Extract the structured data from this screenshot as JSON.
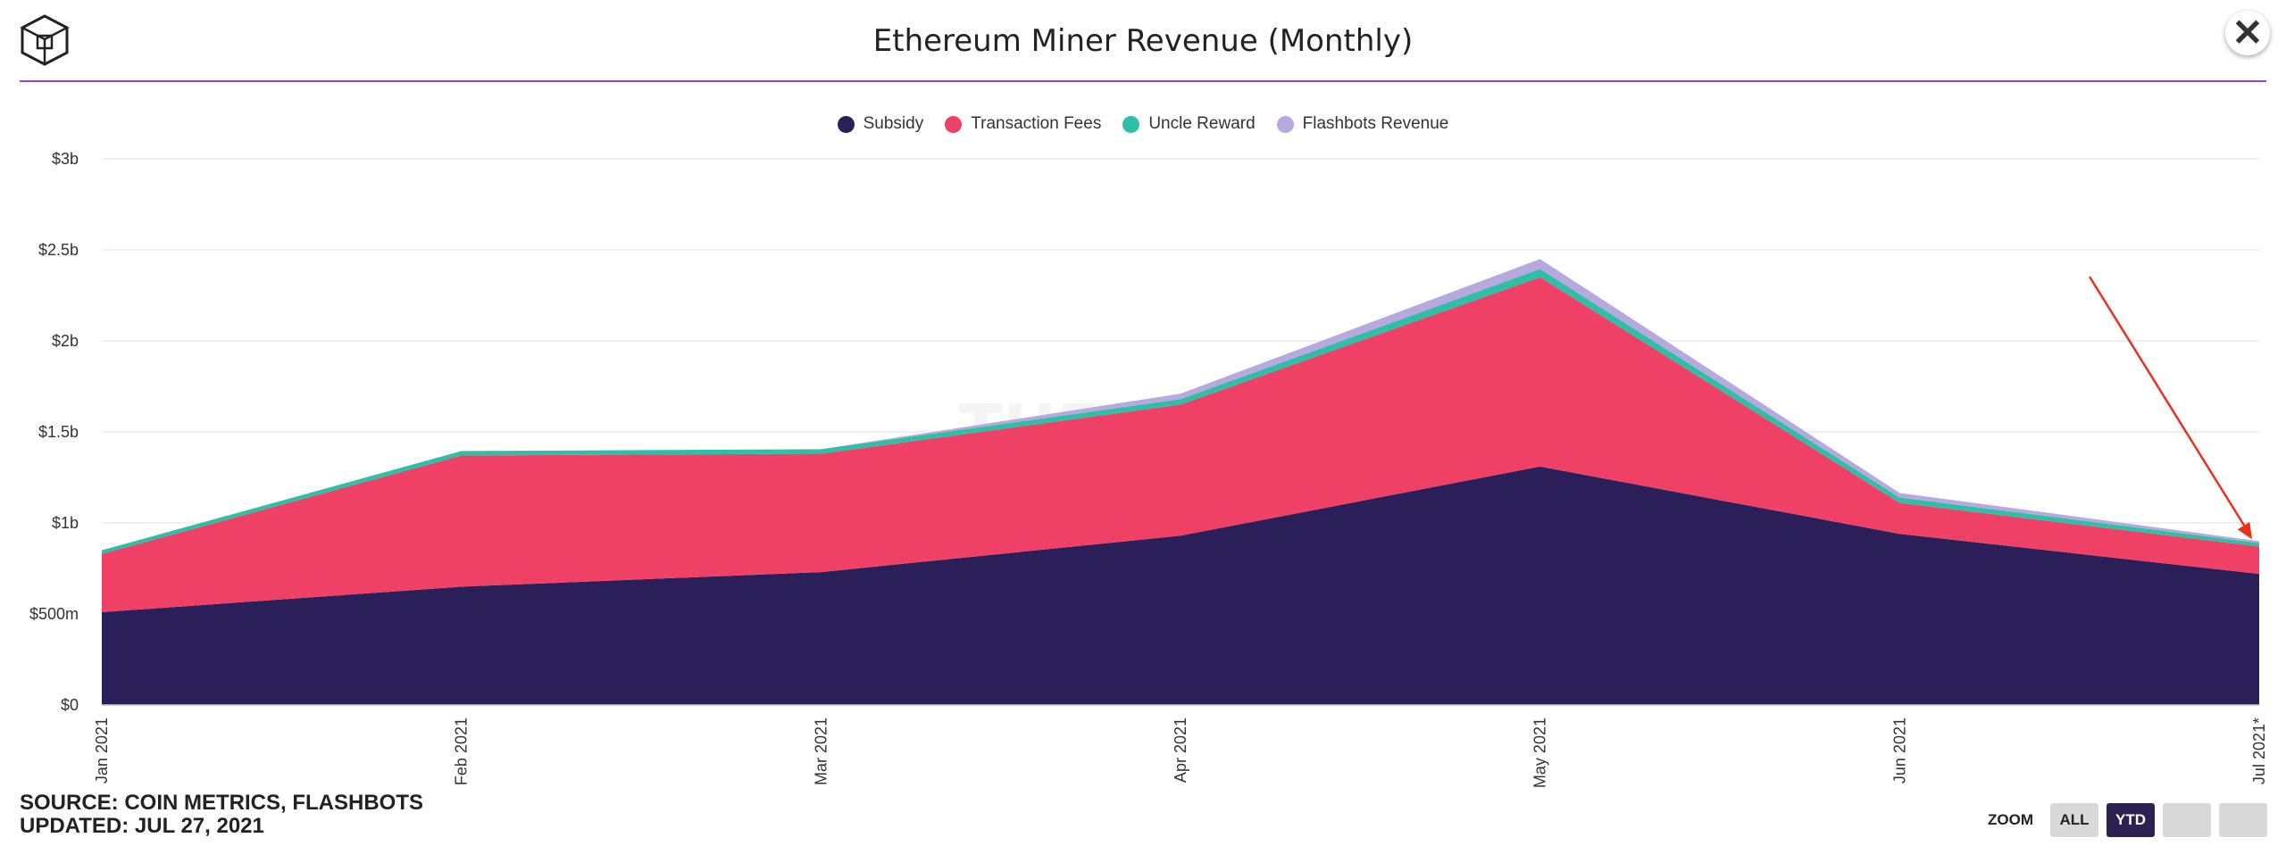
{
  "header": {
    "title": "Ethereum Miner Revenue (Monthly)",
    "logo_icon": "the-block-cube-logo",
    "close_icon": "close-x-icon",
    "accent_color": "#9b46c9"
  },
  "watermark": "THE BLOCK",
  "footer": {
    "source": "SOURCE: COIN METRICS, FLASHBOTS",
    "updated": "UPDATED: JUL 27, 2021"
  },
  "zoom": {
    "label": "ZOOM",
    "buttons": [
      "ALL",
      "YTD",
      "",
      ""
    ],
    "active": "YTD"
  },
  "chart_data": {
    "type": "area",
    "stacked": true,
    "title": "Ethereum Miner Revenue (Monthly)",
    "categories": [
      "Jan 2021",
      "Feb 2021",
      "Mar 2021",
      "Apr 2021",
      "May 2021",
      "Jun 2021",
      "Jul 2021*"
    ],
    "y_ticks": [
      "$0",
      "$500m",
      "$1b",
      "$1.5b",
      "$2b",
      "$2.5b",
      "$3b"
    ],
    "ylim": [
      0,
      3000
    ],
    "y_unit": "millions USD",
    "grid": true,
    "legend_position": "top-center",
    "series": [
      {
        "name": "Subsidy",
        "color": "#2a1f58",
        "values": [
          510,
          650,
          730,
          930,
          1310,
          940,
          720
        ]
      },
      {
        "name": "Transaction Fees",
        "color": "#ef4166",
        "values": [
          320,
          720,
          650,
          720,
          1040,
          170,
          150
        ]
      },
      {
        "name": "Uncle Reward",
        "color": "#2fbfa6",
        "values": [
          20,
          25,
          25,
          30,
          45,
          30,
          20
        ]
      },
      {
        "name": "Flashbots Revenue",
        "color": "#b7a9e0",
        "values": [
          0,
          0,
          0,
          30,
          55,
          25,
          10
        ]
      }
    ],
    "annotation": {
      "type": "arrow",
      "color": "#e8321e",
      "target": "Jul 2021*"
    }
  }
}
